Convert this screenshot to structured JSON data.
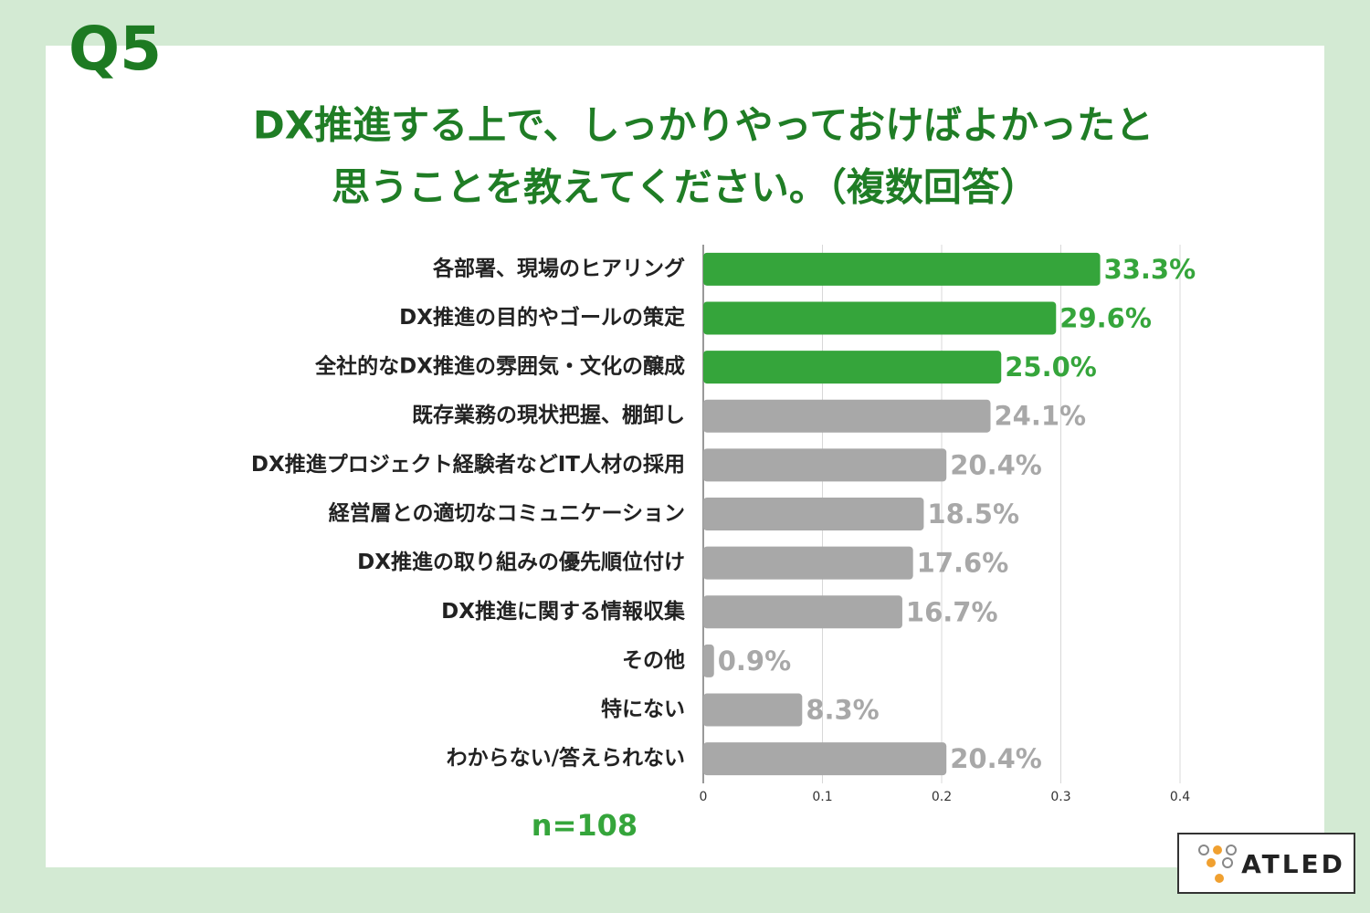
{
  "question_number": "Q5",
  "note": "n=108",
  "logo": "ATLED",
  "chart_data": {
    "type": "bar",
    "orientation": "horizontal",
    "title": [
      "DX推進する上で、しっかりやっておけばよかったと",
      "思うことを教えてください。（複数回答）"
    ],
    "categories": [
      "各部署、現場のヒアリング",
      "DX推進の目的やゴールの策定",
      "全社的なDX推進の雰囲気・文化の醸成",
      "既存業務の現状把握、棚卸し",
      "DX推進プロジェクト経験者などIT人材の採用",
      "経営層との適切なコミュニケーション",
      "DX推進の取り組みの優先順位付け",
      "DX推進に関する情報収集",
      "その他",
      "特にない",
      "わからない/答えられない"
    ],
    "values": [
      0.333,
      0.296,
      0.25,
      0.241,
      0.204,
      0.185,
      0.176,
      0.167,
      0.009,
      0.083,
      0.204
    ],
    "value_labels": [
      "33.3%",
      "29.6%",
      "25.0%",
      "24.1%",
      "20.4%",
      "18.5%",
      "17.6%",
      "16.7%",
      "0.9%",
      "8.3%",
      "20.4%"
    ],
    "colors": [
      "#35a53b",
      "#35a53b",
      "#35a53b",
      "#a8a8a8",
      "#a8a8a8",
      "#a8a8a8",
      "#a8a8a8",
      "#a8a8a8",
      "#a8a8a8",
      "#a8a8a8",
      "#a8a8a8"
    ],
    "xlim": [
      0,
      0.4
    ],
    "xticks": [
      0,
      0.1,
      0.2,
      0.3,
      0.4
    ],
    "grid": true
  }
}
